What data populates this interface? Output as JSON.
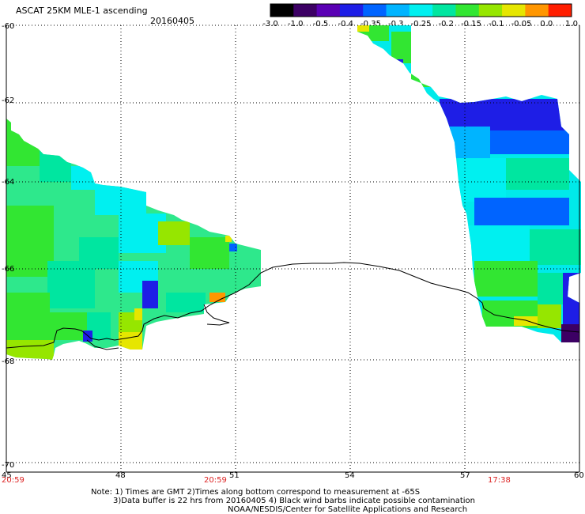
{
  "header": {
    "title": "ASCAT 25KM MLE-1 ascending",
    "date": "20160405"
  },
  "colorbar": {
    "tick_labels": [
      "-3.0",
      "-1.0",
      "-0.5",
      "-0.4",
      "-0.35",
      "-0.3",
      "-0.25",
      "-0.2",
      "-0.15",
      "-0.1",
      "-0.05",
      "0.0",
      "1.0"
    ],
    "colors": [
      "#000000",
      "#3c0064",
      "#5a00b4",
      "#1e1ee6",
      "#0064ff",
      "#00b4ff",
      "#00f0f0",
      "#00e6a0",
      "#32e632",
      "#96e600",
      "#e6e600",
      "#ff9600",
      "#ff1e00"
    ]
  },
  "axes": {
    "y_ticks": [
      "-60",
      "-62",
      "-64",
      "-66",
      "-68",
      "-70"
    ],
    "x_ticks": [
      "45",
      "48",
      "51",
      "54",
      "57",
      "60"
    ],
    "time_labels": [
      "20:59",
      "20:59",
      "17:38"
    ]
  },
  "notes": {
    "line1": "Note: 1) Times are GMT 2)Times along bottom correspond to measurement at -65S",
    "line2": "3)Data buffer is 22 hrs from 20160405 4) Black wind barbs indicate possible contamination",
    "line3": "NOAA/NESDIS/Center for Satellite Applications and Research"
  }
}
